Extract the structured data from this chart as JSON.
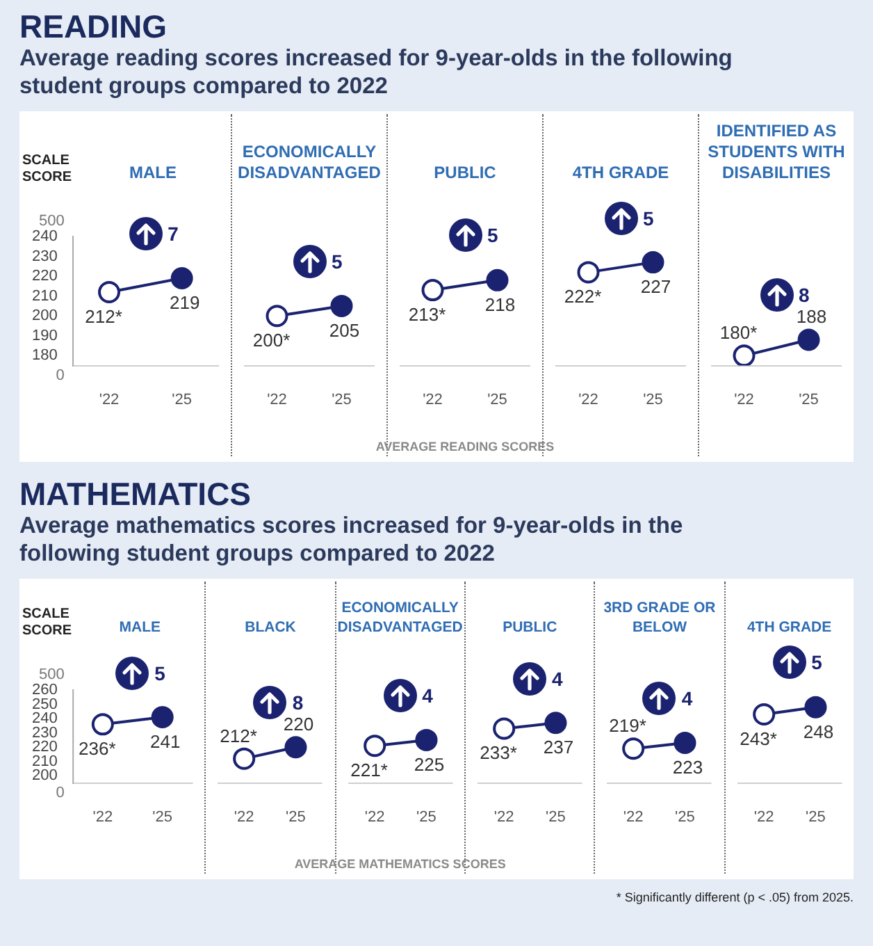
{
  "chart_data": [
    {
      "type": "line",
      "title": "MALE",
      "subtitle": "Average reading scores increased for 9-year-olds in the following student groups compared to 2022",
      "ylabel": "SCALE SCORE",
      "categories": [
        "'22",
        "'25"
      ],
      "marker": "circle",
      "ylim": [
        175,
        240
      ],
      "yticks": [
        180,
        190,
        200,
        210,
        220,
        230,
        240
      ],
      "annotations": [
        "7",
        "READING",
        "500",
        "0"
      ],
      "series": [
        {
          "color": "#1b2370",
          "values": [
            212,
            219
          ],
          "value_labels": [
            "212*",
            "219"
          ]
        }
      ]
    },
    {
      "type": "line",
      "title": "ECONOMICALLY DISADVANTAGED",
      "categories": [
        "'22",
        "'25"
      ],
      "marker": "circle",
      "ylim": [
        175,
        240
      ],
      "yticks": [
        180,
        190,
        200,
        210,
        220,
        230,
        240
      ],
      "tick_labels": "x",
      "annotations": [
        "5"
      ],
      "series": [
        {
          "color": "#1b2370",
          "values": [
            200,
            205
          ],
          "value_labels": [
            "200*",
            "205"
          ]
        }
      ]
    },
    {
      "type": "line",
      "title": "PUBLIC",
      "xlabel": "AVERAGE READING SCORES",
      "categories": [
        "'22",
        "'25"
      ],
      "marker": "circle",
      "ylim": [
        175,
        240
      ],
      "yticks": [
        180,
        190,
        200,
        210,
        220,
        230,
        240
      ],
      "tick_labels": "x",
      "annotations": [
        "5"
      ],
      "series": [
        {
          "color": "#1b2370",
          "values": [
            213,
            218
          ],
          "value_labels": [
            "213*",
            "218"
          ]
        }
      ]
    },
    {
      "type": "line",
      "title": "4TH GRADE",
      "categories": [
        "'22",
        "'25"
      ],
      "marker": "circle",
      "ylim": [
        175,
        240
      ],
      "yticks": [
        180,
        190,
        200,
        210,
        220,
        230,
        240
      ],
      "tick_labels": "x",
      "annotations": [
        "5"
      ],
      "series": [
        {
          "color": "#1b2370",
          "values": [
            222,
            227
          ],
          "value_labels": [
            "222*",
            "227"
          ]
        }
      ]
    },
    {
      "type": "line",
      "title": "IDENTIFIED AS STUDENTS WITH DISABILITIES",
      "categories": [
        "'22",
        "'25"
      ],
      "marker": "circle",
      "ylim": [
        175,
        240
      ],
      "yticks": [
        180,
        190,
        200,
        210,
        220,
        230,
        240
      ],
      "tick_labels": "x",
      "annotations": [
        "8"
      ],
      "series": [
        {
          "color": "#1b2370",
          "values": [
            180,
            188
          ],
          "value_labels": [
            "180*",
            "188"
          ]
        }
      ]
    },
    {
      "type": "line",
      "title": "MALE",
      "subtitle": "Average mathematics scores increased for 9-year-olds in the following student groups compared to 2022",
      "ylabel": "SCALE SCORE",
      "categories": [
        "'22",
        "'25"
      ],
      "marker": "circle",
      "ylim": [
        195,
        260
      ],
      "yticks": [
        200,
        210,
        220,
        230,
        240,
        250,
        260
      ],
      "annotations": [
        "5",
        "MATHEMATICS",
        "500",
        "0"
      ],
      "series": [
        {
          "color": "#1b2370",
          "values": [
            236,
            241
          ],
          "value_labels": [
            "236*",
            "241"
          ]
        }
      ]
    },
    {
      "type": "line",
      "title": "BLACK",
      "categories": [
        "'22",
        "'25"
      ],
      "marker": "circle",
      "ylim": [
        195,
        260
      ],
      "yticks": [
        200,
        210,
        220,
        230,
        240,
        250,
        260
      ],
      "tick_labels": "x",
      "annotations": [
        "8"
      ],
      "series": [
        {
          "color": "#1b2370",
          "values": [
            212,
            220
          ],
          "value_labels": [
            "212*",
            "220"
          ]
        }
      ]
    },
    {
      "type": "line",
      "title": "ECONOMICALLY DISADVANTAGED",
      "xlabel": "AVERAGE MATHEMATICS SCORES",
      "categories": [
        "'22",
        "'25"
      ],
      "marker": "circle",
      "ylim": [
        195,
        260
      ],
      "yticks": [
        200,
        210,
        220,
        230,
        240,
        250,
        260
      ],
      "tick_labels": "x",
      "annotations": [
        "4"
      ],
      "series": [
        {
          "color": "#1b2370",
          "values": [
            221,
            225
          ],
          "value_labels": [
            "221*",
            "225"
          ]
        }
      ]
    },
    {
      "type": "line",
      "title": "PUBLIC",
      "categories": [
        "'22",
        "'25"
      ],
      "marker": "circle",
      "ylim": [
        195,
        260
      ],
      "yticks": [
        200,
        210,
        220,
        230,
        240,
        250,
        260
      ],
      "tick_labels": "x",
      "annotations": [
        "4"
      ],
      "series": [
        {
          "color": "#1b2370",
          "values": [
            233,
            237
          ],
          "value_labels": [
            "233*",
            "237"
          ]
        }
      ]
    },
    {
      "type": "line",
      "title": "3RD GRADE OR BELOW",
      "categories": [
        "'22",
        "'25"
      ],
      "marker": "circle",
      "ylim": [
        195,
        260
      ],
      "yticks": [
        200,
        210,
        220,
        230,
        240,
        250,
        260
      ],
      "tick_labels": "x",
      "annotations": [
        "4"
      ],
      "series": [
        {
          "color": "#1b2370",
          "values": [
            219,
            223
          ],
          "value_labels": [
            "219*",
            "223"
          ]
        }
      ]
    },
    {
      "type": "line",
      "title": "4TH GRADE",
      "categories": [
        "'22",
        "'25"
      ],
      "marker": "circle",
      "ylim": [
        195,
        260
      ],
      "yticks": [
        200,
        210,
        220,
        230,
        240,
        250,
        260
      ],
      "tick_labels": "x",
      "annotations": [
        "5",
        "* Significantly different (p < .05) from 2025."
      ],
      "series": [
        {
          "color": "#1b2370",
          "values": [
            243,
            248
          ],
          "value_labels": [
            "243*",
            "248"
          ]
        }
      ]
    }
  ]
}
